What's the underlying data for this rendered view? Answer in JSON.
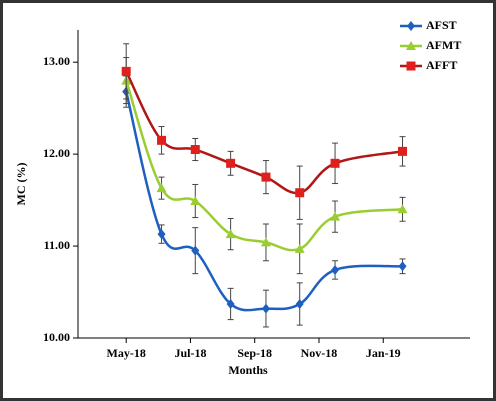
{
  "chart_data": {
    "type": "line",
    "x_label": "Months",
    "y_label": "MC (%)",
    "x": [
      0,
      1.1,
      2.15,
      3.25,
      4.35,
      5.4,
      6.5,
      8.6
    ],
    "xlim": [
      -1.5,
      10.7
    ],
    "xticks": [
      {
        "value": 0,
        "label": "May-18"
      },
      {
        "value": 2,
        "label": "Jul-18"
      },
      {
        "value": 4,
        "label": "Sep-18"
      },
      {
        "value": 6,
        "label": "Nov-18"
      },
      {
        "value": 8,
        "label": "Jan-19"
      }
    ],
    "ylim": [
      10,
      13.35
    ],
    "yticks": [
      {
        "value": 10,
        "label": "10.00"
      },
      {
        "value": 11,
        "label": "11.00"
      },
      {
        "value": 12,
        "label": "12.00"
      },
      {
        "value": 13,
        "label": "13.00"
      }
    ],
    "legend": "top-right",
    "series": [
      {
        "name": "AFST",
        "color": "#1f5fbf",
        "marker": "diamond",
        "values": [
          12.68,
          11.13,
          10.95,
          10.37,
          10.32,
          10.37,
          10.74,
          10.78
        ],
        "errors": [
          0.17,
          0.1,
          0.25,
          0.17,
          0.2,
          0.23,
          0.1,
          0.08
        ]
      },
      {
        "name": "AFMT",
        "color": "#9acd32",
        "marker": "triangle",
        "values": [
          12.8,
          11.63,
          11.49,
          11.13,
          11.04,
          10.97,
          11.32,
          11.4
        ],
        "errors": [
          0.25,
          0.12,
          0.18,
          0.17,
          0.2,
          0.27,
          0.17,
          0.13
        ]
      },
      {
        "name": "AFFT",
        "color": "#b01818",
        "marker": "square",
        "values": [
          12.9,
          12.15,
          12.05,
          11.9,
          11.75,
          11.58,
          11.9,
          12.03
        ],
        "errors": [
          0.3,
          0.15,
          0.12,
          0.13,
          0.18,
          0.29,
          0.22,
          0.16
        ]
      }
    ]
  }
}
